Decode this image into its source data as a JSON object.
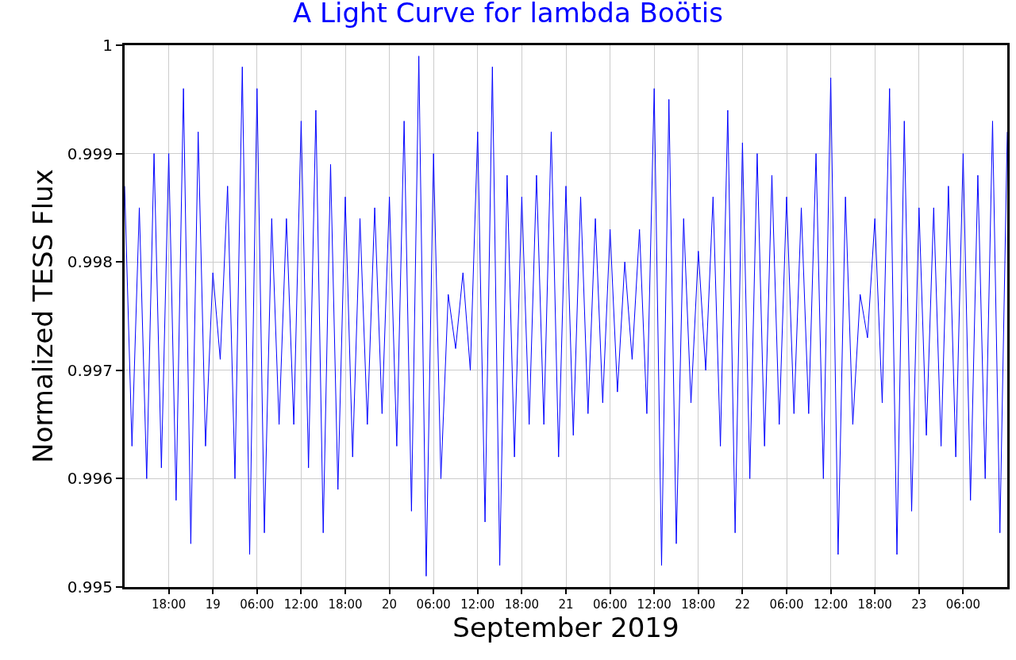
{
  "chart_data": {
    "type": "line",
    "title": "A Light Curve for lambda Boötis",
    "xlabel": "September 2019",
    "ylabel": "Normalized TESS Flux",
    "x": [
      "2019-09-18T12:00",
      "2019-09-18T13:00",
      "2019-09-18T14:00",
      "2019-09-18T15:00",
      "2019-09-18T16:00",
      "2019-09-18T17:00",
      "2019-09-18T18:00",
      "2019-09-18T19:00",
      "2019-09-18T20:00",
      "2019-09-18T21:00",
      "2019-09-18T22:00",
      "2019-09-18T23:00",
      "2019-09-19T00:00",
      "2019-09-19T01:00",
      "2019-09-19T02:00",
      "2019-09-19T03:00",
      "2019-09-19T04:00",
      "2019-09-19T05:00",
      "2019-09-19T06:00",
      "2019-09-19T07:00",
      "2019-09-19T08:00",
      "2019-09-19T09:00",
      "2019-09-19T10:00",
      "2019-09-19T11:00",
      "2019-09-19T12:00",
      "2019-09-19T13:00",
      "2019-09-19T14:00",
      "2019-09-19T15:00",
      "2019-09-19T16:00",
      "2019-09-19T17:00",
      "2019-09-19T18:00",
      "2019-09-19T19:00",
      "2019-09-19T20:00",
      "2019-09-19T21:00",
      "2019-09-19T22:00",
      "2019-09-19T23:00",
      "2019-09-20T00:00",
      "2019-09-20T01:00",
      "2019-09-20T02:00",
      "2019-09-20T03:00",
      "2019-09-20T04:00",
      "2019-09-20T05:00",
      "2019-09-20T06:00",
      "2019-09-20T07:00",
      "2019-09-20T08:00",
      "2019-09-20T09:00",
      "2019-09-20T10:00",
      "2019-09-20T11:00",
      "2019-09-20T12:00",
      "2019-09-20T13:00",
      "2019-09-20T14:00",
      "2019-09-20T15:00",
      "2019-09-20T16:00",
      "2019-09-20T17:00",
      "2019-09-20T18:00",
      "2019-09-20T19:00",
      "2019-09-20T20:00",
      "2019-09-20T21:00",
      "2019-09-20T22:00",
      "2019-09-20T23:00",
      "2019-09-21T00:00",
      "2019-09-21T01:00",
      "2019-09-21T02:00",
      "2019-09-21T03:00",
      "2019-09-21T04:00",
      "2019-09-21T05:00",
      "2019-09-21T06:00",
      "2019-09-21T07:00",
      "2019-09-21T08:00",
      "2019-09-21T09:00",
      "2019-09-21T10:00",
      "2019-09-21T11:00",
      "2019-09-21T12:00",
      "2019-09-21T13:00",
      "2019-09-21T14:00",
      "2019-09-21T15:00",
      "2019-09-21T16:00",
      "2019-09-21T17:00",
      "2019-09-21T18:00",
      "2019-09-21T19:00",
      "2019-09-21T20:00",
      "2019-09-21T21:00",
      "2019-09-21T22:00",
      "2019-09-21T23:00",
      "2019-09-22T00:00",
      "2019-09-22T01:00",
      "2019-09-22T02:00",
      "2019-09-22T03:00",
      "2019-09-22T04:00",
      "2019-09-22T05:00",
      "2019-09-22T06:00",
      "2019-09-22T07:00",
      "2019-09-22T08:00",
      "2019-09-22T09:00",
      "2019-09-22T10:00",
      "2019-09-22T11:00",
      "2019-09-22T12:00",
      "2019-09-22T13:00",
      "2019-09-22T14:00",
      "2019-09-22T15:00",
      "2019-09-22T16:00",
      "2019-09-22T17:00",
      "2019-09-22T18:00",
      "2019-09-22T19:00",
      "2019-09-22T20:00",
      "2019-09-22T21:00",
      "2019-09-22T22:00",
      "2019-09-22T23:00",
      "2019-09-23T00:00",
      "2019-09-23T01:00",
      "2019-09-23T02:00",
      "2019-09-23T03:00",
      "2019-09-23T04:00",
      "2019-09-23T05:00",
      "2019-09-23T06:00",
      "2019-09-23T07:00",
      "2019-09-23T08:00",
      "2019-09-23T09:00",
      "2019-09-23T10:00",
      "2019-09-23T11:00",
      "2019-09-23T12:00"
    ],
    "series": [
      {
        "color": "#0000ff",
        "values": [
          0.9987,
          0.9963,
          0.9985,
          0.996,
          0.999,
          0.9961,
          0.999,
          0.9958,
          0.9996,
          0.9954,
          0.9992,
          0.9963,
          0.9979,
          0.9971,
          0.9987,
          0.996,
          0.9998,
          0.9953,
          0.9996,
          0.9955,
          0.9984,
          0.9965,
          0.9984,
          0.9965,
          0.9993,
          0.9961,
          0.9994,
          0.9955,
          0.9989,
          0.9959,
          0.9986,
          0.9962,
          0.9984,
          0.9965,
          0.9985,
          0.9966,
          0.9986,
          0.9963,
          0.9993,
          0.9957,
          0.9999,
          0.9951,
          0.999,
          0.996,
          0.9977,
          0.9972,
          0.9979,
          0.997,
          0.9992,
          0.9956,
          0.9998,
          0.9952,
          0.9988,
          0.9962,
          0.9986,
          0.9965,
          0.9988,
          0.9965,
          0.9992,
          0.9962,
          0.9987,
          0.9964,
          0.9986,
          0.9966,
          0.9984,
          0.9967,
          0.9983,
          0.9968,
          0.998,
          0.9971,
          0.9983,
          0.9966,
          0.9996,
          0.9952,
          0.9995,
          0.9954,
          0.9984,
          0.9967,
          0.9981,
          0.997,
          0.9986,
          0.9963,
          0.9994,
          0.9955,
          0.9991,
          0.996,
          0.999,
          0.9963,
          0.9988,
          0.9965,
          0.9986,
          0.9966,
          0.9985,
          0.9966,
          0.999,
          0.996,
          0.9997,
          0.9953,
          0.9986,
          0.9965,
          0.9977,
          0.9973,
          0.9984,
          0.9967,
          0.9996,
          0.9953,
          0.9993,
          0.9957,
          0.9985,
          0.9964,
          0.9985,
          0.9963,
          0.9987,
          0.9962,
          0.999,
          0.9958,
          0.9988,
          0.996,
          0.9993,
          0.9955,
          0.9992
        ]
      }
    ],
    "xlim": [
      "2019-09-18T12:00",
      "2019-09-23T12:00"
    ],
    "xticks": [
      {
        "value": "2019-09-18T18:00",
        "label": "18:00"
      },
      {
        "value": "2019-09-19T00:00",
        "label": "19"
      },
      {
        "value": "2019-09-19T06:00",
        "label": "06:00"
      },
      {
        "value": "2019-09-19T12:00",
        "label": "12:00"
      },
      {
        "value": "2019-09-19T18:00",
        "label": "18:00"
      },
      {
        "value": "2019-09-20T00:00",
        "label": "20"
      },
      {
        "value": "2019-09-20T06:00",
        "label": "06:00"
      },
      {
        "value": "2019-09-20T12:00",
        "label": "12:00"
      },
      {
        "value": "2019-09-20T18:00",
        "label": "18:00"
      },
      {
        "value": "2019-09-21T00:00",
        "label": "21"
      },
      {
        "value": "2019-09-21T06:00",
        "label": "06:00"
      },
      {
        "value": "2019-09-21T12:00",
        "label": "12:00"
      },
      {
        "value": "2019-09-21T18:00",
        "label": "18:00"
      },
      {
        "value": "2019-09-22T00:00",
        "label": "22"
      },
      {
        "value": "2019-09-22T06:00",
        "label": "06:00"
      },
      {
        "value": "2019-09-22T12:00",
        "label": "12:00"
      },
      {
        "value": "2019-09-22T18:00",
        "label": "18:00"
      },
      {
        "value": "2019-09-23T00:00",
        "label": "23"
      },
      {
        "value": "2019-09-23T06:00",
        "label": "06:00"
      }
    ],
    "ylim": [
      0.995,
      1
    ],
    "yticks": [
      0.995,
      0.996,
      0.997,
      0.998,
      0.999,
      1
    ],
    "grid": true,
    "line_style": "solid",
    "marker": "none"
  }
}
